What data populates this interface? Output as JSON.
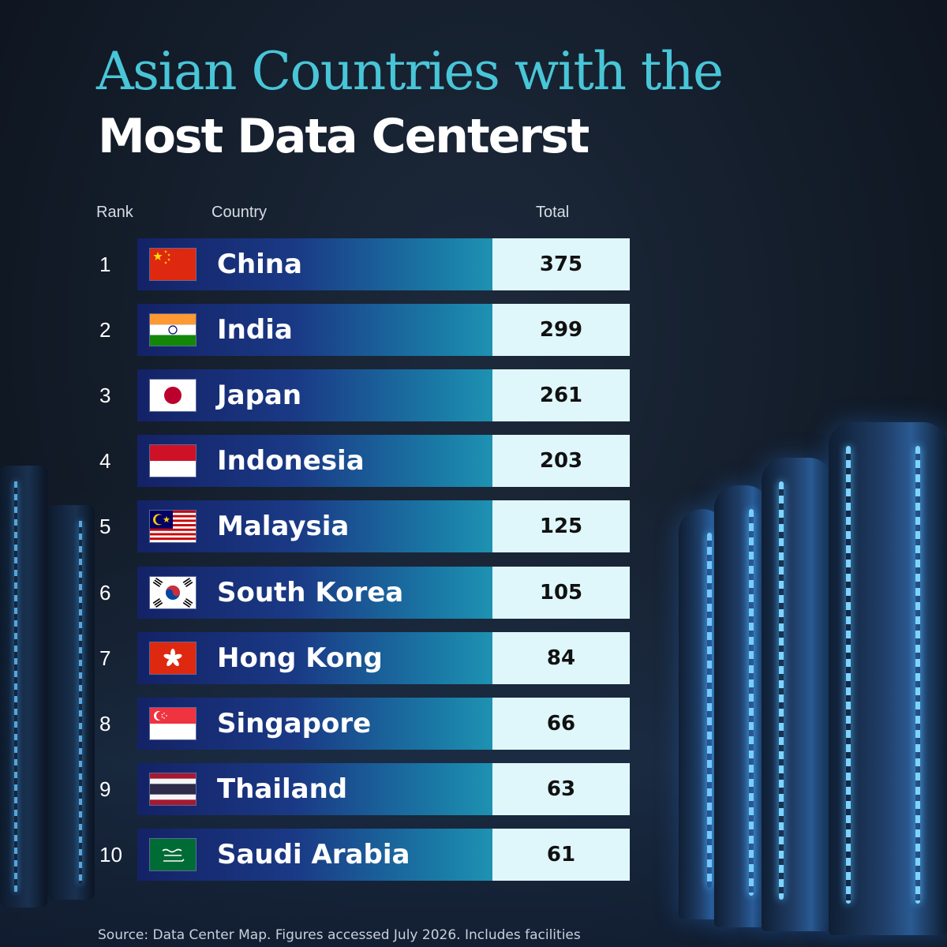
{
  "title_line1": "Asian Countries with the",
  "title_line2": "Most Data Centerst",
  "headers": {
    "rank": "Rank",
    "country": "Country",
    "total": "Total"
  },
  "source_text": "Source: Data Center Map. Figures accessed July 2026. Includes facilities",
  "colors": {
    "title_accent": "#48c6d8",
    "bar_start": "#142266",
    "bar_end": "#1e92b2",
    "total_box": "#dff7fb",
    "background": "#131c29"
  },
  "chart_data": {
    "type": "table",
    "columns": [
      "Rank",
      "Country",
      "Total"
    ],
    "rows": [
      {
        "rank": "1",
        "country": "China",
        "total": "375",
        "flag": "china-flag-icon"
      },
      {
        "rank": "2",
        "country": "India",
        "total": "299",
        "flag": "india-flag-icon"
      },
      {
        "rank": "3",
        "country": "Japan",
        "total": "261",
        "flag": "japan-flag-icon"
      },
      {
        "rank": "4",
        "country": "Indonesia",
        "total": "203",
        "flag": "indonesia-flag-icon"
      },
      {
        "rank": "5",
        "country": "Malaysia",
        "total": "125",
        "flag": "malaysia-flag-icon"
      },
      {
        "rank": "6",
        "country": "South Korea",
        "total": "105",
        "flag": "south-korea-flag-icon"
      },
      {
        "rank": "7",
        "country": "Hong Kong",
        "total": "84",
        "flag": "hong-kong-flag-icon"
      },
      {
        "rank": "8",
        "country": "Singapore",
        "total": "66",
        "flag": "singapore-flag-icon"
      },
      {
        "rank": "9",
        "country": "Thailand",
        "total": "63",
        "flag": "thailand-flag-icon"
      },
      {
        "rank": "10",
        "country": "Saudi Arabia",
        "total": "61",
        "flag": "saudi-arabia-flag-icon"
      }
    ]
  }
}
